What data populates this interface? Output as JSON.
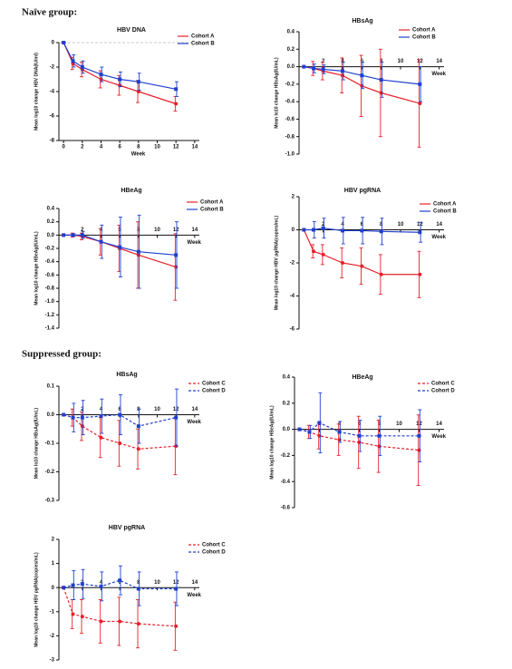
{
  "headings": [
    "Naïve group:",
    "Suppressed group:"
  ],
  "chart_data": [
    {
      "type": "line",
      "title": "HBV DNA",
      "xlabel": "Week",
      "ylabel": "Mean log10 change HBV DNA(IU/ml)",
      "x": [
        0,
        1,
        2,
        4,
        6,
        8,
        12
      ],
      "xlim": [
        -0.5,
        14.5
      ],
      "xticks": [
        0,
        2,
        4,
        6,
        8,
        10,
        12,
        14
      ],
      "ylim": [
        -8,
        0
      ],
      "yticks": [
        0,
        -2,
        -4,
        -6,
        -8
      ],
      "series": [
        {
          "name": "Cohort A",
          "color": "#e8202a",
          "marker": "circle",
          "linestyle": "solid",
          "values": [
            0,
            -1.7,
            -2.2,
            -3,
            -3.5,
            -4,
            -5
          ],
          "errors": [
            0,
            0.5,
            0.6,
            0.7,
            0.8,
            0.9,
            0.6
          ]
        },
        {
          "name": "Cohort B",
          "color": "#1f3fd0",
          "marker": "square",
          "linestyle": "solid",
          "values": [
            0,
            -1.5,
            -2,
            -2.6,
            -3,
            -3.2,
            -3.8
          ],
          "errors": [
            0,
            0.5,
            0.5,
            0.6,
            0.6,
            0.7,
            0.6
          ]
        }
      ]
    },
    {
      "type": "line",
      "title": "HBsAg",
      "xlabel": "Week",
      "ylabel": "Mean lo10 change HBsAg(IU/mL)",
      "x": [
        0,
        1,
        2,
        4,
        6,
        8,
        12
      ],
      "xlim": [
        -0.5,
        14.5
      ],
      "xticks": [
        2,
        4,
        6,
        8,
        10,
        12,
        14
      ],
      "ylim": [
        -1.0,
        0.4
      ],
      "yticks": [
        0.4,
        0.2,
        {
          "value": 0,
          "label": "0.0"
        },
        -0.2,
        -0.4,
        -0.6,
        -0.8,
        {
          "value": -1,
          "label": "-1.0"
        }
      ],
      "series": [
        {
          "name": "Cohort A",
          "color": "#e8202a",
          "marker": "circle",
          "linestyle": "solid",
          "values": [
            0,
            -0.02,
            -0.05,
            -0.1,
            -0.22,
            -0.3,
            -0.42
          ],
          "errors": [
            0,
            0.08,
            0.1,
            0.2,
            0.35,
            0.5,
            0.5
          ]
        },
        {
          "name": "Cohort B",
          "color": "#1f3fd0",
          "marker": "square",
          "linestyle": "solid",
          "values": [
            0,
            -0.02,
            -0.03,
            -0.05,
            -0.1,
            -0.15,
            -0.2
          ],
          "errors": [
            0,
            0.05,
            0.05,
            0.1,
            0.15,
            0.2,
            0.2
          ]
        }
      ]
    },
    {
      "type": "line",
      "title": "HBeAg",
      "xlabel": "Week",
      "ylabel": "Mean log10 change HBeAg(IU/mL)",
      "x": [
        0,
        1,
        2,
        4,
        6,
        8,
        12
      ],
      "xlim": [
        -0.5,
        14.5
      ],
      "xticks": [
        2,
        4,
        6,
        8,
        10,
        12,
        14
      ],
      "ylim": [
        -1.4,
        0.4
      ],
      "yticks": [
        0.4,
        0.2,
        {
          "value": 0,
          "label": "0.0"
        },
        -0.2,
        -0.4,
        -0.6,
        -0.8,
        {
          "value": -1,
          "label": "-1.0"
        },
        -1.2,
        -1.4
      ],
      "series": [
        {
          "name": "Cohort A",
          "color": "#e8202a",
          "marker": "circle",
          "linestyle": "solid",
          "values": [
            0,
            0,
            -0.02,
            -0.1,
            -0.2,
            -0.3,
            -0.48
          ],
          "errors": [
            0,
            0.03,
            0.05,
            0.2,
            0.35,
            0.5,
            0.5
          ]
        },
        {
          "name": "Cohort B",
          "color": "#1f3fd0",
          "marker": "square",
          "linestyle": "solid",
          "values": [
            0,
            0,
            0,
            -0.1,
            -0.18,
            -0.25,
            -0.3
          ],
          "errors": [
            0,
            0.02,
            0.05,
            0.25,
            0.45,
            0.55,
            0.5
          ]
        }
      ]
    },
    {
      "type": "line",
      "title": "HBV pgRNA",
      "xlabel": "Week",
      "ylabel": "Mean log10 change HBV pgRNA(copies/mL)",
      "x": [
        0,
        1,
        2,
        4,
        6,
        8,
        12
      ],
      "xlim": [
        -0.5,
        14.5
      ],
      "xticks": [
        2,
        4,
        6,
        8,
        10,
        12,
        14
      ],
      "ylim": [
        -6,
        2
      ],
      "yticks": [
        2,
        0,
        -2,
        -4,
        -6
      ],
      "series": [
        {
          "name": "Cohort A",
          "color": "#e8202a",
          "marker": "circle",
          "linestyle": "solid",
          "values": [
            0,
            -1.3,
            -1.5,
            -2,
            -2.2,
            -2.7,
            -2.7
          ],
          "errors": [
            0,
            0.4,
            0.6,
            0.9,
            1.1,
            1.2,
            1.4
          ]
        },
        {
          "name": "Cohort B",
          "color": "#1f3fd0",
          "marker": "square",
          "linestyle": "solid",
          "values": [
            0,
            0,
            0.1,
            -0.05,
            -0.05,
            -0.1,
            -0.15
          ],
          "errors": [
            0,
            0.5,
            0.6,
            0.8,
            0.8,
            0.8,
            0.6
          ]
        }
      ]
    },
    {
      "type": "line",
      "title": "HBsAg",
      "xlabel": "Week",
      "ylabel": "Mean lo10 change HBsAg(IU/mL)",
      "x": [
        0,
        1,
        2,
        4,
        6,
        8,
        12
      ],
      "xlim": [
        -0.5,
        14.5
      ],
      "xticks": [
        2,
        4,
        6,
        8,
        10,
        12,
        14
      ],
      "ylim": [
        -0.3,
        0.1
      ],
      "yticks": [
        0.1,
        {
          "value": 0,
          "label": "0.0"
        },
        -0.1,
        -0.2,
        -0.3
      ],
      "series": [
        {
          "name": "Cohort C",
          "color": "#e8202a",
          "marker": "circle",
          "linestyle": "dashed",
          "values": [
            0,
            -0.01,
            -0.04,
            -0.08,
            -0.1,
            -0.12,
            -0.11
          ],
          "errors": [
            0,
            0.03,
            0.05,
            0.07,
            0.08,
            0.07,
            0.1
          ]
        },
        {
          "name": "Cohort D",
          "color": "#1f3fd0",
          "marker": "square",
          "linestyle": "dashed",
          "values": [
            0,
            -0.01,
            -0.01,
            -0.005,
            0,
            -0.04,
            -0.01
          ],
          "errors": [
            0,
            0.05,
            0.06,
            0.06,
            0.07,
            0.06,
            0.1
          ]
        }
      ]
    },
    {
      "type": "line",
      "title": "HBeAg",
      "xlabel": "Week",
      "ylabel": "Mean log10 change HBeAg(IU/mL)",
      "x": [
        0,
        1,
        2,
        4,
        6,
        8,
        12
      ],
      "xlim": [
        -0.5,
        14.5
      ],
      "xticks": [
        2,
        4,
        6,
        8,
        10,
        12,
        14
      ],
      "ylim": [
        -0.6,
        0.4
      ],
      "yticks": [
        0.4,
        0.2,
        {
          "value": 0,
          "label": "0.0"
        },
        -0.2,
        -0.4,
        -0.6
      ],
      "series": [
        {
          "name": "Cohort C",
          "color": "#e8202a",
          "marker": "circle",
          "linestyle": "dashed",
          "values": [
            0,
            -0.02,
            -0.05,
            -0.08,
            -0.1,
            -0.13,
            -0.16
          ],
          "errors": [
            0,
            0.05,
            0.1,
            0.12,
            0.2,
            0.2,
            0.27
          ]
        },
        {
          "name": "Cohort D",
          "color": "#1f3fd0",
          "marker": "square",
          "linestyle": "dashed",
          "values": [
            0,
            -0.02,
            0.05,
            -0.02,
            -0.05,
            -0.05,
            -0.05
          ],
          "errors": [
            0,
            0.05,
            0.23,
            0.08,
            0.12,
            0.15,
            0.2
          ]
        }
      ]
    },
    {
      "type": "line",
      "title": "HBV pgRNA",
      "xlabel": "Week",
      "ylabel": "Mean log10 change HBV pgRNA(copies/mL)",
      "x": [
        0,
        1,
        2,
        4,
        6,
        8,
        12
      ],
      "xlim": [
        -0.5,
        14.5
      ],
      "xticks": [
        2,
        4,
        6,
        8,
        10,
        12,
        14
      ],
      "ylim": [
        -3,
        2
      ],
      "yticks": [
        2,
        1,
        0,
        -1,
        -2,
        -3
      ],
      "series": [
        {
          "name": "Cohort C",
          "color": "#e8202a",
          "marker": "circle",
          "linestyle": "dashed",
          "values": [
            0,
            -1.1,
            -1.2,
            -1.4,
            -1.4,
            -1.5,
            -1.6
          ],
          "errors": [
            0,
            0.6,
            0.7,
            0.9,
            1,
            1,
            1
          ]
        },
        {
          "name": "Cohort D",
          "color": "#1f3fd0",
          "marker": "square",
          "linestyle": "dashed",
          "values": [
            0,
            0.1,
            0.15,
            0.05,
            0.3,
            -0.05,
            -0.05
          ],
          "errors": [
            0,
            0.6,
            0.6,
            0.6,
            0.6,
            0.7,
            0.7
          ]
        }
      ]
    }
  ]
}
